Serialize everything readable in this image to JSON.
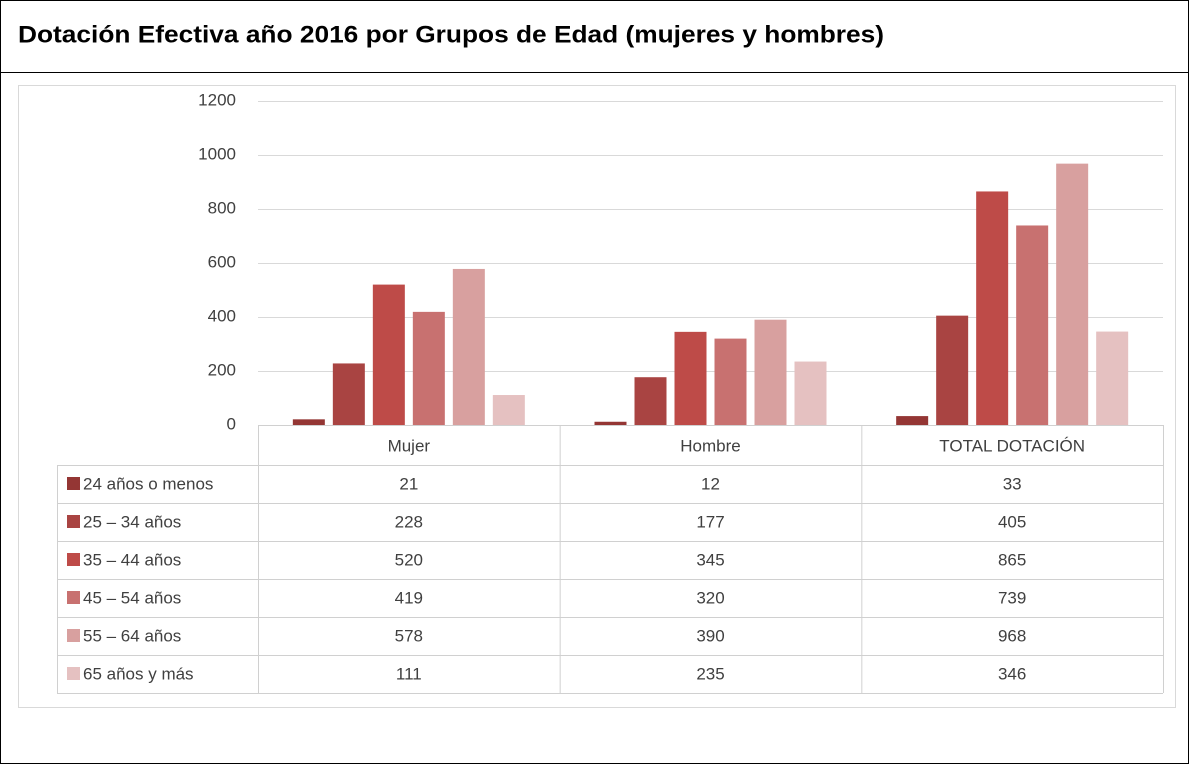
{
  "chart_data": {
    "type": "bar",
    "title": "Dotación Efectiva año 2016 por Grupos de Edad (mujeres y hombres)",
    "categories": [
      "Mujer",
      "Hombre",
      "TOTAL DOTACIÓN"
    ],
    "series": [
      {
        "name": "24 años o menos",
        "color": "#943634",
        "values": [
          21,
          12,
          33
        ]
      },
      {
        "name": "25 – 34 años",
        "color": "#a94442",
        "values": [
          228,
          177,
          405
        ]
      },
      {
        "name": "35 – 44 años",
        "color": "#be4b48",
        "values": [
          520,
          345,
          865
        ]
      },
      {
        "name": "45 – 54 años",
        "color": "#c87170",
        "values": [
          419,
          320,
          739
        ]
      },
      {
        "name": "55 – 64 años",
        "color": "#d8a09f",
        "values": [
          578,
          390,
          968
        ]
      },
      {
        "name": "65 años y más",
        "color": "#e5c1c1",
        "values": [
          111,
          235,
          346
        ]
      }
    ],
    "ylim": [
      0,
      1200
    ],
    "yticks": [
      0,
      200,
      400,
      600,
      800,
      1000,
      1200
    ],
    "grid": true
  }
}
